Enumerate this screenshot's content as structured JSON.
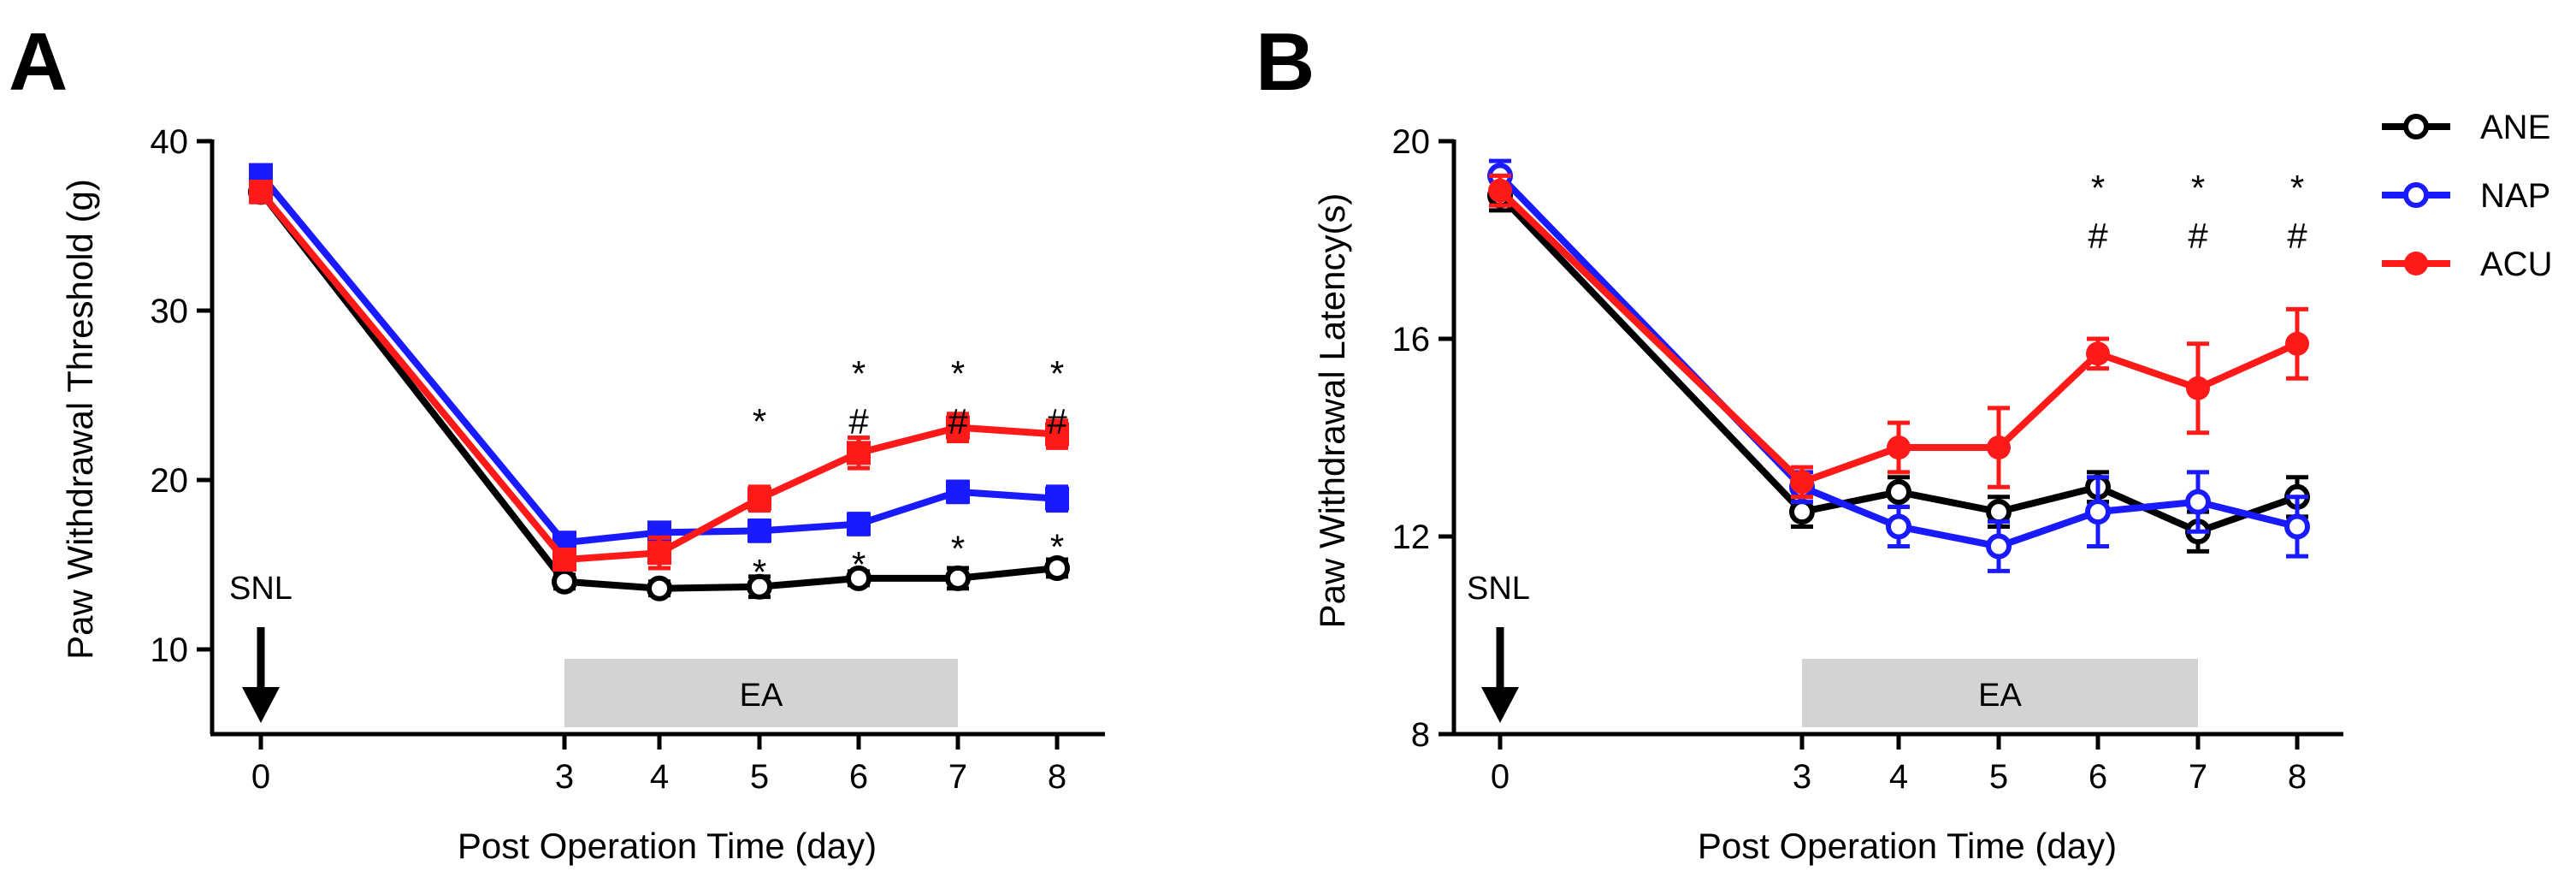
{
  "figure": {
    "panel_a_label": "A",
    "panel_b_label": "B",
    "legend": [
      {
        "key": "ANE",
        "label": "ANE",
        "color": "#000000"
      },
      {
        "key": "NAP",
        "label": "NAP",
        "color": "#1a1aff"
      },
      {
        "key": "ACU",
        "label": "ACU",
        "color": "#ff1a1a"
      }
    ]
  },
  "chart_data": [
    {
      "type": "line",
      "panel": "A",
      "title": "",
      "xlabel": "Post Operation Time (day)",
      "ylabel": "Paw Withdrawal  Threshold (g)",
      "x": [
        0,
        3,
        4,
        5,
        6,
        7,
        8
      ],
      "x_ticks": [
        0,
        3,
        4,
        5,
        6,
        7,
        8
      ],
      "xlim": [
        -0.5,
        8.5
      ],
      "ylim": [
        5,
        40
      ],
      "y_ticks": [
        10,
        20,
        30,
        40
      ],
      "series": [
        {
          "name": "ANE",
          "color": "#000000",
          "marker": "open-circle",
          "values": [
            37.0,
            14.0,
            13.6,
            13.7,
            14.2,
            14.2,
            14.8
          ],
          "errors": [
            0.5,
            0.4,
            0.4,
            0.6,
            0.4,
            0.6,
            0.5
          ]
        },
        {
          "name": "NAP",
          "color": "#1a1aff",
          "marker": "square",
          "values": [
            38.0,
            16.3,
            16.9,
            17.0,
            17.4,
            19.3,
            18.9
          ],
          "errors": [
            0.4,
            0.5,
            0.5,
            0.6,
            0.6,
            0.6,
            0.7
          ]
        },
        {
          "name": "ACU",
          "color": "#ff1a1a",
          "marker": "square",
          "values": [
            37.0,
            15.3,
            15.7,
            18.9,
            21.6,
            23.1,
            22.7
          ],
          "errors": [
            0.6,
            0.5,
            0.9,
            0.7,
            0.9,
            0.8,
            0.8
          ]
        }
      ],
      "annotations": {
        "event_label": "SNL",
        "event_x": 0,
        "bar_label": "EA",
        "bar_range": [
          3,
          7
        ],
        "significance_above": [
          {
            "x": 5,
            "symbols": [
              "*"
            ]
          },
          {
            "x": 6,
            "symbols": [
              "*",
              "#"
            ]
          },
          {
            "x": 7,
            "symbols": [
              "*",
              "#"
            ]
          },
          {
            "x": 8,
            "symbols": [
              "*",
              "#"
            ]
          }
        ],
        "significance_nap": [
          {
            "x": 5,
            "symbol": "*"
          },
          {
            "x": 6,
            "symbol": "*"
          },
          {
            "x": 7,
            "symbol": "*"
          },
          {
            "x": 8,
            "symbol": "*"
          }
        ]
      }
    },
    {
      "type": "line",
      "panel": "B",
      "title": "",
      "xlabel": "Post Operation Time (day)",
      "ylabel": "Paw Withdrawal Latency(s)",
      "x": [
        0,
        3,
        4,
        5,
        6,
        7,
        8
      ],
      "x_ticks": [
        0,
        3,
        4,
        5,
        6,
        7,
        8
      ],
      "xlim": [
        -0.5,
        8.5
      ],
      "ylim": [
        8,
        20
      ],
      "y_ticks": [
        8,
        12,
        16,
        20
      ],
      "series": [
        {
          "name": "ANE",
          "color": "#000000",
          "marker": "open-circle",
          "values": [
            18.9,
            12.5,
            12.9,
            12.5,
            13.0,
            12.1,
            12.8
          ],
          "errors": [
            0.3,
            0.3,
            0.3,
            0.3,
            0.3,
            0.4,
            0.4
          ]
        },
        {
          "name": "NAP",
          "color": "#1a1aff",
          "marker": "open-circle",
          "values": [
            19.3,
            13.0,
            12.2,
            11.8,
            12.5,
            12.7,
            12.2
          ],
          "errors": [
            0.3,
            0.3,
            0.4,
            0.5,
            0.7,
            0.6,
            0.6
          ]
        },
        {
          "name": "ACU",
          "color": "#ff1a1a",
          "marker": "circle",
          "values": [
            19.0,
            13.1,
            13.8,
            13.8,
            15.7,
            15.0,
            15.9
          ],
          "errors": [
            0.3,
            0.3,
            0.5,
            0.8,
            0.3,
            0.9,
            0.7
          ]
        }
      ],
      "annotations": {
        "event_label": "SNL",
        "event_x": 0,
        "bar_label": "EA",
        "bar_range": [
          3,
          7
        ],
        "significance_above": [
          {
            "x": 6,
            "symbols": [
              "*",
              "#"
            ]
          },
          {
            "x": 7,
            "symbols": [
              "*",
              "#"
            ]
          },
          {
            "x": 8,
            "symbols": [
              "*",
              "#"
            ]
          }
        ],
        "significance_nap": []
      }
    }
  ]
}
